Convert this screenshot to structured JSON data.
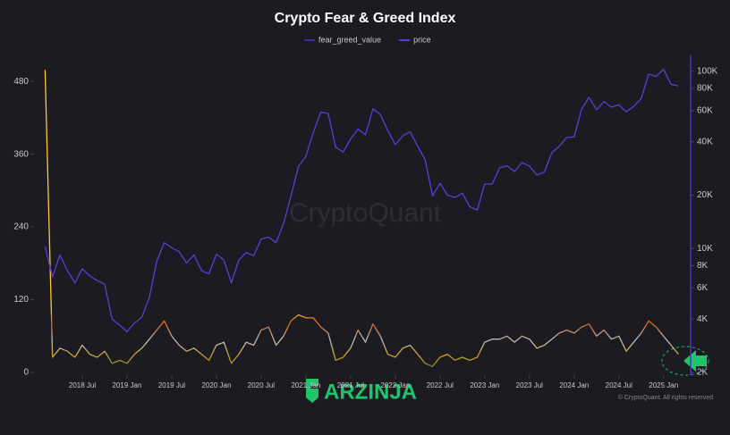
{
  "chart_data": {
    "type": "line",
    "title": "Crypto Fear & Greed Index",
    "watermark": "CryptoQuant",
    "copyright": "© CryptoQuant. All rights reserved",
    "brand": "ARZINJA",
    "x": [
      "2018-02",
      "2018-03",
      "2018-04",
      "2018-05",
      "2018-06",
      "2018-07",
      "2018-08",
      "2018-09",
      "2018-10",
      "2018-11",
      "2018-12",
      "2019-01",
      "2019-02",
      "2019-03",
      "2019-04",
      "2019-05",
      "2019-06",
      "2019-07",
      "2019-08",
      "2019-09",
      "2019-10",
      "2019-11",
      "2019-12",
      "2020-01",
      "2020-02",
      "2020-03",
      "2020-04",
      "2020-05",
      "2020-06",
      "2020-07",
      "2020-08",
      "2020-09",
      "2020-10",
      "2020-11",
      "2020-12",
      "2021-01",
      "2021-02",
      "2021-03",
      "2021-04",
      "2021-05",
      "2021-06",
      "2021-07",
      "2021-08",
      "2021-09",
      "2021-10",
      "2021-11",
      "2021-12",
      "2022-01",
      "2022-02",
      "2022-03",
      "2022-04",
      "2022-05",
      "2022-06",
      "2022-07",
      "2022-08",
      "2022-09",
      "2022-10",
      "2022-11",
      "2022-12",
      "2023-01",
      "2023-02",
      "2023-03",
      "2023-04",
      "2023-05",
      "2023-06",
      "2023-07",
      "2023-08",
      "2023-09",
      "2023-10",
      "2023-11",
      "2023-12",
      "2024-01",
      "2024-02",
      "2024-03",
      "2024-04",
      "2024-05",
      "2024-06",
      "2024-07",
      "2024-08",
      "2024-09",
      "2024-10",
      "2024-11",
      "2024-12",
      "2025-01",
      "2025-02",
      "2025-03"
    ],
    "series": [
      {
        "name": "fear_greed_value",
        "color": "#3b2f9e",
        "values": [
          499,
          25,
          40,
          35,
          25,
          45,
          30,
          25,
          35,
          15,
          20,
          15,
          30,
          40,
          55,
          70,
          85,
          60,
          45,
          35,
          40,
          30,
          20,
          45,
          50,
          15,
          30,
          50,
          45,
          70,
          75,
          45,
          60,
          85,
          95,
          90,
          90,
          75,
          65,
          20,
          25,
          40,
          70,
          50,
          80,
          60,
          30,
          25,
          40,
          45,
          30,
          15,
          10,
          25,
          30,
          20,
          25,
          20,
          25,
          50,
          55,
          55,
          60,
          50,
          60,
          55,
          40,
          45,
          55,
          65,
          70,
          65,
          75,
          80,
          60,
          70,
          55,
          60,
          35,
          50,
          65,
          85,
          75,
          60,
          45,
          30
        ]
      },
      {
        "name": "price",
        "color": "#5a3fd6",
        "axis": "y2",
        "values": [
          10300,
          6900,
          9200,
          7500,
          6400,
          7700,
          7000,
          6600,
          6300,
          4000,
          3700,
          3400,
          3800,
          4100,
          5300,
          8500,
          10800,
          10100,
          9600,
          8300,
          9200,
          7500,
          7200,
          9300,
          8600,
          6400,
          8600,
          9500,
          9100,
          11300,
          11600,
          10800,
          13800,
          19700,
          29000,
          33100,
          45100,
          58800,
          57700,
          37300,
          35000,
          41500,
          47100,
          43800,
          61300,
          57000,
          46300,
          38500,
          43200,
          45500,
          37700,
          31800,
          19800,
          23300,
          20000,
          19400,
          20500,
          17200,
          16500,
          23100,
          23100,
          28500,
          29300,
          27200,
          30500,
          29200,
          26000,
          27000,
          34700,
          37700,
          42300,
          42600,
          61200,
          71300,
          60600,
          67500,
          62700,
          64600,
          59000,
          63300,
          70200,
          96400,
          93400,
          102400,
          84300,
          82500
        ]
      }
    ],
    "xticks": [
      {
        "value": "2018-07",
        "label": "2018 Jul"
      },
      {
        "value": "2019-01",
        "label": "2019 Jan"
      },
      {
        "value": "2019-07",
        "label": "2019 Jul"
      },
      {
        "value": "2020-01",
        "label": "2020 Jan"
      },
      {
        "value": "2020-07",
        "label": "2020 Jul"
      },
      {
        "value": "2021-01",
        "label": "2021 Jan"
      },
      {
        "value": "2021-07",
        "label": "2021 Jul"
      },
      {
        "value": "2022-01",
        "label": "2022 Jan"
      },
      {
        "value": "2022-07",
        "label": "2022 Jul"
      },
      {
        "value": "2023-01",
        "label": "2023 Jan"
      },
      {
        "value": "2023-07",
        "label": "2023 Jul"
      },
      {
        "value": "2024-01",
        "label": "2024 Jan"
      },
      {
        "value": "2024-07",
        "label": "2024 Jul"
      },
      {
        "value": "2025-01",
        "label": "2025 Jan"
      }
    ],
    "ylim": [
      0,
      520
    ],
    "yticks": [
      0,
      120,
      240,
      360,
      480
    ],
    "y2lim": [
      2000,
      120000
    ],
    "y2scale": "log",
    "y2ticks": [
      {
        "value": 2000,
        "label": "2K"
      },
      {
        "value": 4000,
        "label": "4K"
      },
      {
        "value": 6000,
        "label": "6K"
      },
      {
        "value": 8000,
        "label": "8K"
      },
      {
        "value": 10000,
        "label": "10K"
      },
      {
        "value": 20000,
        "label": "20K"
      },
      {
        "value": 40000,
        "label": "40K"
      },
      {
        "value": 60000,
        "label": "60K"
      },
      {
        "value": 80000,
        "label": "80K"
      },
      {
        "value": 100000,
        "label": "100K"
      }
    ],
    "legend": "top"
  }
}
